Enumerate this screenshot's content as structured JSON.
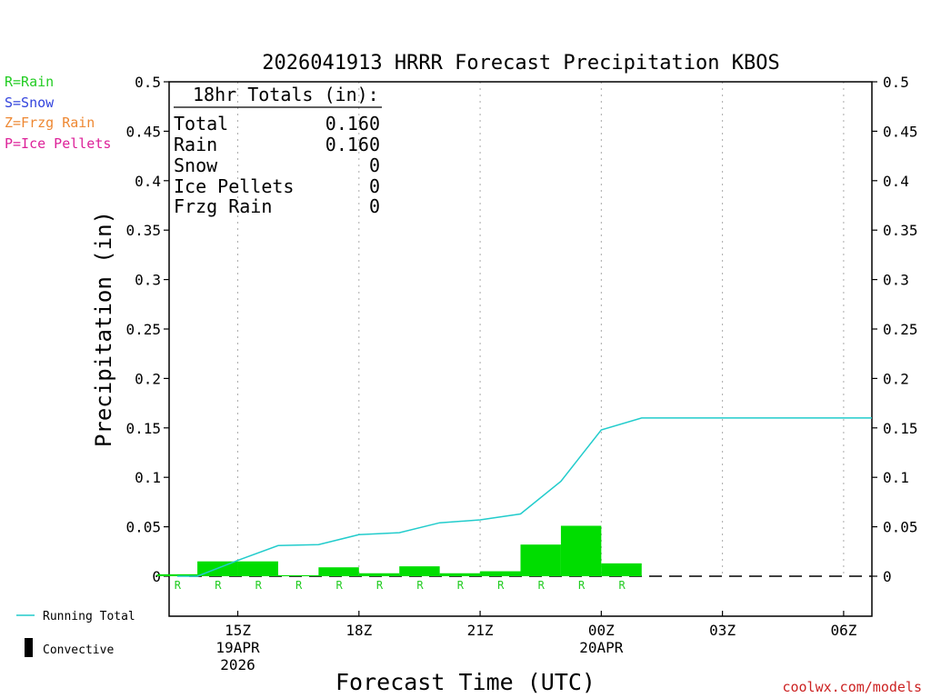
{
  "title": "2026041913 HRRR Forecast Precipitation KBOS",
  "legend_types": [
    {
      "label": "R=Rain",
      "color": "#22cc22"
    },
    {
      "label": "S=Snow",
      "color": "#3344dd"
    },
    {
      "label": "Z=Frzg Rain",
      "color": "#ee8833"
    },
    {
      "label": "P=Ice Pellets",
      "color": "#dd2299"
    }
  ],
  "totals": {
    "header": "18hr Totals (in):",
    "rows": [
      {
        "label": "Total",
        "value": "0.160"
      },
      {
        "label": "Rain",
        "value": "0.160"
      },
      {
        "label": "Snow",
        "value": "0"
      },
      {
        "label": "Ice Pellets",
        "value": "0"
      },
      {
        "label": "Frzg Rain",
        "value": "0"
      }
    ]
  },
  "bottom_legend": {
    "running_total": "Running Total",
    "convective": "Convective"
  },
  "credit": "coolwx.com/models",
  "colors": {
    "bars": "#00dd00",
    "running_total": "#22cccc",
    "type_marker": "#22cc22",
    "credit": "#cc2222"
  },
  "chart_data": {
    "type": "bar",
    "title": "2026041913 HRRR Forecast Precipitation KBOS",
    "xlabel": "Forecast Time (UTC)",
    "ylabel": "Precipitation (in)",
    "ylim": [
      -0.04,
      0.5
    ],
    "yticks": [
      0,
      0.05,
      0.1,
      0.15,
      0.2,
      0.25,
      0.3,
      0.35,
      0.4,
      0.45,
      0.5
    ],
    "ytick_labels": [
      "0",
      "0.05",
      "0.1",
      "0.15",
      "0.2",
      "0.25",
      "0.3",
      "0.35",
      "0.4",
      "0.45",
      "0.5"
    ],
    "x_hours_range": [
      13.3,
      30.7
    ],
    "xticks": [
      {
        "hour": 15,
        "lines": [
          "15Z",
          "19APR",
          "2026"
        ]
      },
      {
        "hour": 18,
        "lines": [
          "18Z"
        ]
      },
      {
        "hour": 21,
        "lines": [
          "21Z"
        ]
      },
      {
        "hour": 24,
        "lines": [
          "00Z",
          "20APR"
        ]
      },
      {
        "hour": 27,
        "lines": [
          "03Z"
        ]
      },
      {
        "hour": 30,
        "lines": [
          "06Z"
        ]
      }
    ],
    "grid": "vertical-dotted",
    "hours": [
      14,
      15,
      16,
      17,
      18,
      19,
      20,
      21,
      22,
      23,
      24,
      25,
      26,
      27,
      28,
      29,
      30,
      31
    ],
    "hourly_precip": [
      0.002,
      0.015,
      0.015,
      0.001,
      0.009,
      0.003,
      0.01,
      0.003,
      0.005,
      0.032,
      0.051,
      0.013,
      0,
      0,
      0,
      0,
      0,
      0
    ],
    "precip_type": [
      "R",
      "R",
      "R",
      "R",
      "R",
      "R",
      "R",
      "R",
      "R",
      "R",
      "R",
      "R",
      "",
      "",
      "",
      "",
      "",
      ""
    ],
    "series": [
      {
        "name": "Running Total",
        "hours": [
          13.5,
          14,
          15,
          16,
          17,
          18,
          19,
          20,
          21,
          22,
          23,
          24,
          25,
          26,
          27,
          28,
          29,
          30,
          30.7
        ],
        "values": [
          0.0,
          0.0,
          0.016,
          0.031,
          0.032,
          0.042,
          0.044,
          0.054,
          0.057,
          0.063,
          0.096,
          0.148,
          0.16,
          0.16,
          0.16,
          0.16,
          0.16,
          0.16,
          0.16
        ]
      }
    ]
  }
}
